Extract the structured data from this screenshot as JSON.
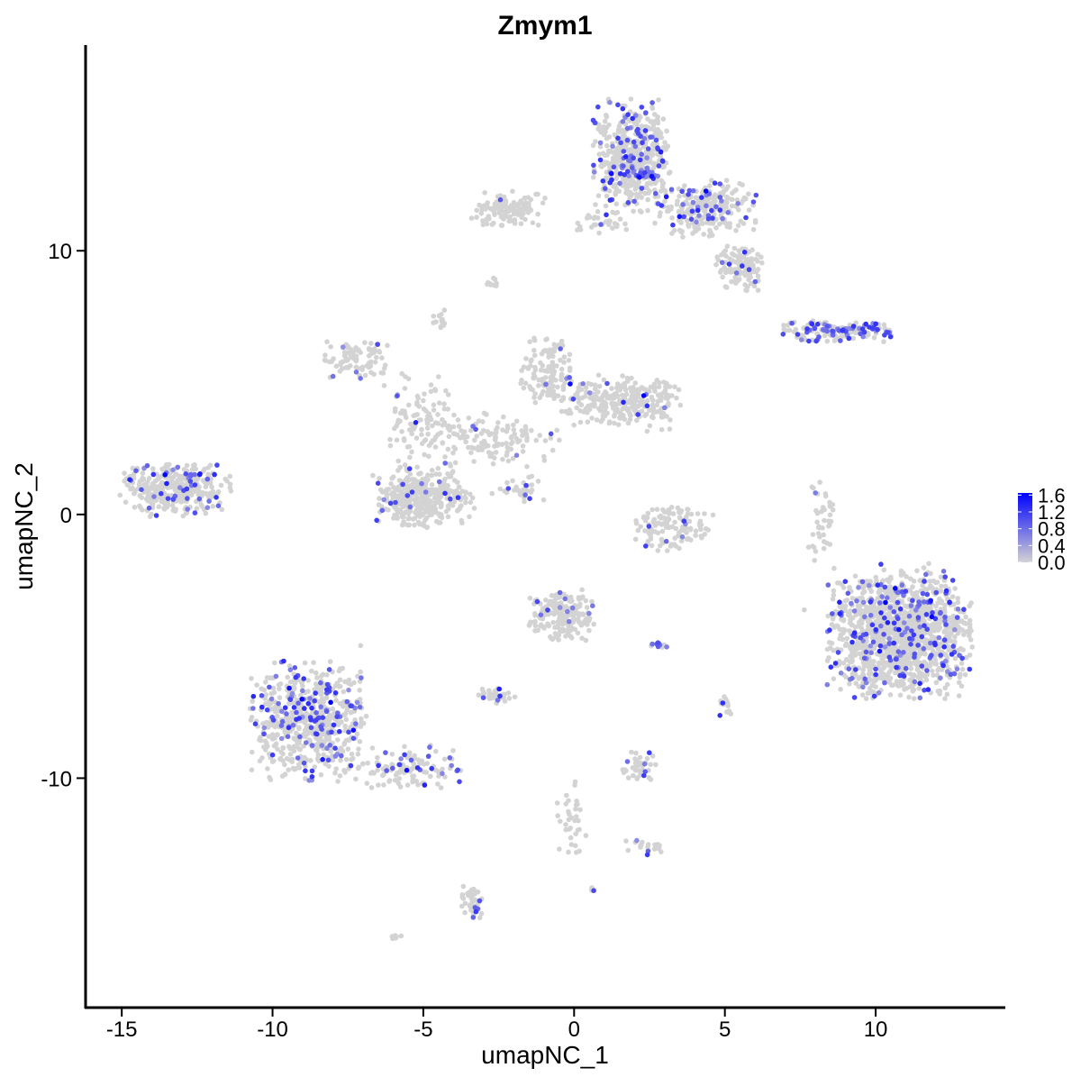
{
  "chart_data": {
    "type": "scatter",
    "title": "Zmym1",
    "xlabel": "umapNC_1",
    "ylabel": "umapNC_2",
    "xlim": [
      -16.2,
      14.3
    ],
    "ylim": [
      -18.7,
      17.8
    ],
    "xticks": [
      -15,
      -10,
      -5,
      0,
      5,
      10
    ],
    "yticks": [
      -10,
      0,
      10
    ],
    "xtick_labels": [
      "-15",
      "-10",
      "-5",
      "0",
      "5",
      "10"
    ],
    "ytick_labels": [
      "-10",
      "0",
      "10"
    ],
    "grid": false,
    "legend": {
      "placement": "right",
      "type": "colorbar",
      "range": [
        0,
        1.65
      ],
      "ticks": [
        0.0,
        0.4,
        0.8,
        1.2,
        1.6
      ],
      "tick_labels": [
        "0.0",
        "0.4",
        "0.8",
        "1.2",
        "1.6"
      ],
      "low_color": "#D3D3D3",
      "high_color": "#0000FF"
    },
    "clusters": [
      {
        "center": [
          1.9,
          13.6
        ],
        "sd": [
          0.6,
          1.0
        ],
        "n": 500,
        "expressed_fraction": 0.2
      },
      {
        "center": [
          4.3,
          11.6
        ],
        "sd": [
          0.8,
          0.5
        ],
        "n": 260,
        "expressed_fraction": 0.14
      },
      {
        "center": [
          5.5,
          9.4
        ],
        "sd": [
          0.35,
          0.45
        ],
        "n": 120,
        "expressed_fraction": 0.05
      },
      {
        "center": [
          -2.2,
          11.6
        ],
        "sd": [
          0.6,
          0.3
        ],
        "n": 120,
        "expressed_fraction": 0.03
      },
      {
        "center": [
          0.8,
          11.1
        ],
        "sd": [
          0.5,
          0.2
        ],
        "n": 30,
        "expressed_fraction": 0.1
      },
      {
        "center": [
          8.6,
          6.95
        ],
        "sd": [
          0.9,
          0.18
        ],
        "n": 160,
        "expressed_fraction": 0.35
      },
      {
        "center": [
          -13.2,
          1.0
        ],
        "sd": [
          0.85,
          0.5
        ],
        "n": 350,
        "expressed_fraction": 0.14
      },
      {
        "center": [
          -7.2,
          5.8
        ],
        "sd": [
          0.5,
          0.35
        ],
        "n": 90,
        "expressed_fraction": 0.05
      },
      {
        "center": [
          -5.0,
          0.6
        ],
        "sd": [
          0.8,
          0.5
        ],
        "n": 380,
        "expressed_fraction": 0.04
      },
      {
        "center": [
          -5.0,
          3.3
        ],
        "sd": [
          0.6,
          1.0
        ],
        "n": 120,
        "expressed_fraction": 0.03
      },
      {
        "center": [
          -2.5,
          2.8
        ],
        "sd": [
          1.0,
          0.5
        ],
        "n": 120,
        "expressed_fraction": 0.03
      },
      {
        "center": [
          -0.9,
          5.4
        ],
        "sd": [
          0.4,
          0.6
        ],
        "n": 120,
        "expressed_fraction": 0.03
      },
      {
        "center": [
          1.5,
          4.2
        ],
        "sd": [
          1.0,
          0.5
        ],
        "n": 280,
        "expressed_fraction": 0.04
      },
      {
        "center": [
          -1.7,
          0.9
        ],
        "sd": [
          0.5,
          0.3
        ],
        "n": 30,
        "expressed_fraction": 0.1
      },
      {
        "center": [
          -4.4,
          7.4
        ],
        "sd": [
          0.15,
          0.2
        ],
        "n": 15,
        "expressed_fraction": 0.1
      },
      {
        "center": [
          -2.7,
          8.8
        ],
        "sd": [
          0.1,
          0.1
        ],
        "n": 10,
        "expressed_fraction": 0.1
      },
      {
        "center": [
          3.3,
          -0.5
        ],
        "sd": [
          0.6,
          0.4
        ],
        "n": 130,
        "expressed_fraction": 0.04
      },
      {
        "center": [
          8.2,
          -0.2
        ],
        "sd": [
          0.2,
          0.8
        ],
        "n": 40,
        "expressed_fraction": 0.05
      },
      {
        "center": [
          10.8,
          -4.5
        ],
        "sd": [
          1.1,
          1.15
        ],
        "n": 1400,
        "expressed_fraction": 0.14
      },
      {
        "center": [
          -8.8,
          -7.8
        ],
        "sd": [
          0.9,
          1.1
        ],
        "n": 600,
        "expressed_fraction": 0.2
      },
      {
        "center": [
          -5.5,
          -9.6
        ],
        "sd": [
          0.9,
          0.4
        ],
        "n": 120,
        "expressed_fraction": 0.2
      },
      {
        "center": [
          -0.4,
          -3.8
        ],
        "sd": [
          0.5,
          0.45
        ],
        "n": 200,
        "expressed_fraction": 0.06
      },
      {
        "center": [
          -2.6,
          -6.9
        ],
        "sd": [
          0.3,
          0.15
        ],
        "n": 40,
        "expressed_fraction": 0.05
      },
      {
        "center": [
          2.2,
          -9.6
        ],
        "sd": [
          0.3,
          0.3
        ],
        "n": 40,
        "expressed_fraction": 0.08
      },
      {
        "center": [
          2.8,
          -5.0
        ],
        "sd": [
          0.2,
          0.08
        ],
        "n": 12,
        "expressed_fraction": 0.4
      },
      {
        "center": [
          -3.4,
          -14.6
        ],
        "sd": [
          0.2,
          0.4
        ],
        "n": 40,
        "expressed_fraction": 0.1
      },
      {
        "center": [
          5.0,
          -7.2
        ],
        "sd": [
          0.1,
          0.2
        ],
        "n": 15,
        "expressed_fraction": 0.1
      },
      {
        "center": [
          2.4,
          -12.6
        ],
        "sd": [
          0.4,
          0.15
        ],
        "n": 20,
        "expressed_fraction": 0.15
      },
      {
        "center": [
          0.0,
          -11.5
        ],
        "sd": [
          0.3,
          0.8
        ],
        "n": 35,
        "expressed_fraction": 0.05
      },
      {
        "center": [
          -5.9,
          -16.0
        ],
        "sd": [
          0.1,
          0.05
        ],
        "n": 8,
        "expressed_fraction": 0.0
      },
      {
        "center": [
          0.6,
          -14.2
        ],
        "sd": [
          0.05,
          0.05
        ],
        "n": 4,
        "expressed_fraction": 0.5
      }
    ]
  }
}
